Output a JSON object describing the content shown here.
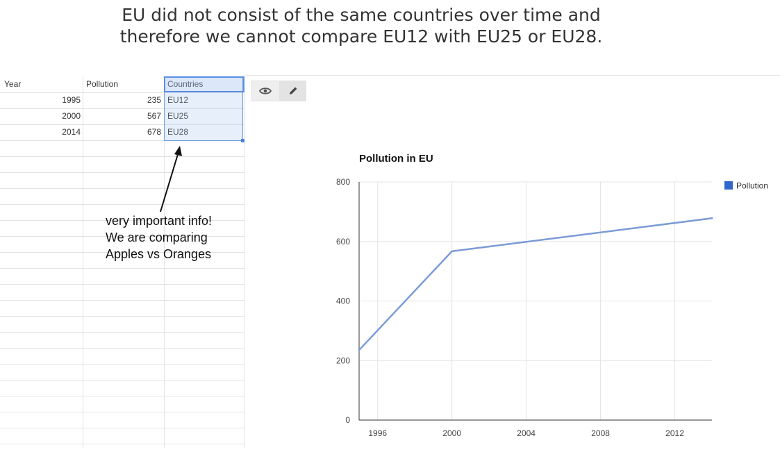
{
  "headline": {
    "line1": "EU did not consist of the same countries over time and",
    "line2": "therefore we cannot compare EU12 with EU25 or EU28."
  },
  "sheet": {
    "headers": [
      "Year",
      "Pollution",
      "Countries"
    ],
    "rows": [
      [
        "1995",
        "235",
        "EU12"
      ],
      [
        "2000",
        "567",
        "EU25"
      ],
      [
        "2014",
        "678",
        "EU28"
      ]
    ]
  },
  "toolbar": {
    "preview_icon": "eye-icon",
    "edit_icon": "pencil-icon"
  },
  "annotation": {
    "lines": [
      "very important info!",
      "We are comparing",
      "Apples vs Oranges"
    ]
  },
  "colors": {
    "series": "#7b9bd6",
    "legend": "#3366cc",
    "selection": "#5b8ee6"
  },
  "chart_data": {
    "type": "line",
    "title": "Pollution in EU",
    "xlabel": "",
    "ylabel": "",
    "x_ticks": [
      "1996",
      "2000",
      "2004",
      "2008",
      "2012"
    ],
    "y_ticks": [
      "0",
      "200",
      "400",
      "600",
      "800"
    ],
    "xlim": [
      1995,
      2014
    ],
    "ylim": [
      0,
      800
    ],
    "grid": true,
    "legend_position": "right",
    "series": [
      {
        "name": "Pollution",
        "points": [
          [
            1995,
            235
          ],
          [
            2000,
            567
          ],
          [
            2014,
            678
          ]
        ]
      }
    ]
  }
}
